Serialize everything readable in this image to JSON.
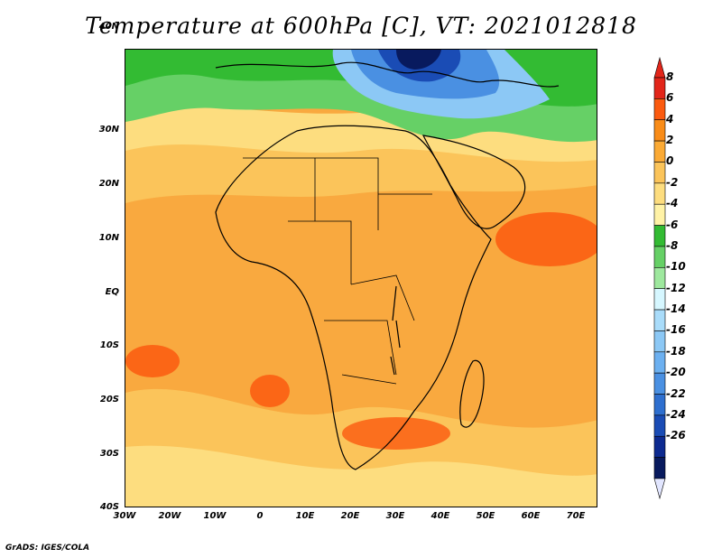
{
  "title": "Temperature at 600hPa [C], VT: 2021012818",
  "credit": "GrADS: IGES/COLA",
  "lat_labels": [
    "40N",
    "30N",
    "20N",
    "10N",
    "EQ",
    "10S",
    "20S",
    "30S",
    "40S"
  ],
  "lon_labels": [
    "30W",
    "20W",
    "10W",
    "0",
    "10E",
    "20E",
    "30E",
    "40E",
    "50E",
    "60E",
    "70E"
  ],
  "colorbar": {
    "labels": [
      "8",
      "6",
      "4",
      "2",
      "0",
      "-2",
      "-4",
      "-6",
      "-8",
      "-10",
      "-12",
      "-14",
      "-16",
      "-18",
      "-20",
      "-22",
      "-24",
      "-26"
    ],
    "colors": [
      "#e2261a",
      "#fb5a0f",
      "#f98c18",
      "#fbaa35",
      "#fbc45a",
      "#fddd7f",
      "#fff2a6",
      "#33bb33",
      "#66d066",
      "#9ee89e",
      "#d6f7ff",
      "#a9dcfa",
      "#8cc8f5",
      "#6cb0f0",
      "#4a90e2",
      "#2e6fcf",
      "#1a4cb5",
      "#0d2a90",
      "#081a5e"
    ],
    "top_color": "#e2261a",
    "bottom_color": "#e2e6ff"
  }
}
